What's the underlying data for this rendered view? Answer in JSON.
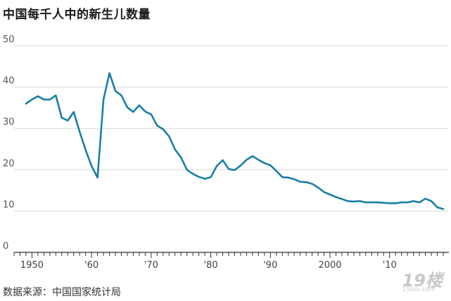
{
  "chart_data": {
    "type": "line",
    "title": "中国每千人中的新生儿数量",
    "source": "数据来源：中国国家统计局",
    "xlabel": "",
    "ylabel": "",
    "xlim": [
      1947,
      2019
    ],
    "ylim": [
      0,
      50
    ],
    "yticks": [
      "0",
      "10",
      "20",
      "30",
      "40",
      "50"
    ],
    "xticks": [
      {
        "x": 1950,
        "label": "1950"
      },
      {
        "x": 1960,
        "label": "'60"
      },
      {
        "x": 1970,
        "label": "'70"
      },
      {
        "x": 1980,
        "label": "'80"
      },
      {
        "x": 1990,
        "label": "'90"
      },
      {
        "x": 2000,
        "label": "2000"
      },
      {
        "x": 2010,
        "label": "'10"
      }
    ],
    "grid": true,
    "line_color": "#1a7fa6",
    "series": [
      {
        "x": [
          1949,
          1950,
          1951,
          1952,
          1953,
          1954,
          1955,
          1956,
          1957,
          1958,
          1959,
          1960,
          1961,
          1962,
          1963,
          1964,
          1965,
          1966,
          1967,
          1968,
          1969,
          1970,
          1971,
          1972,
          1973,
          1974,
          1975,
          1976,
          1977,
          1978,
          1979,
          1980,
          1981,
          1982,
          1983,
          1984,
          1985,
          1986,
          1987,
          1988,
          1989,
          1990,
          1991,
          1992,
          1993,
          1994,
          1995,
          1996,
          1997,
          1998,
          1999,
          2000,
          2001,
          2002,
          2003,
          2004,
          2005,
          2006,
          2007,
          2008,
          2009,
          2010,
          2011,
          2012,
          2013,
          2014,
          2015,
          2016,
          2017,
          2018,
          2019
        ],
        "values": [
          36.0,
          37.0,
          37.8,
          37.0,
          37.0,
          38.0,
          32.6,
          31.9,
          34.0,
          29.2,
          24.8,
          20.9,
          18.1,
          37.0,
          43.4,
          39.1,
          38.0,
          35.1,
          34.0,
          35.6,
          34.1,
          33.4,
          30.7,
          29.8,
          28.1,
          24.9,
          23.0,
          20.0,
          19.0,
          18.3,
          17.8,
          18.2,
          20.9,
          22.3,
          20.2,
          19.9,
          21.0,
          22.4,
          23.3,
          22.4,
          21.6,
          21.1,
          19.7,
          18.2,
          18.1,
          17.7,
          17.1,
          17.0,
          16.6,
          15.7,
          14.6,
          14.0,
          13.4,
          12.9,
          12.4,
          12.3,
          12.4,
          12.1,
          12.1,
          12.1,
          12.0,
          11.9,
          11.9,
          12.1,
          12.1,
          12.4,
          12.1,
          13.0,
          12.4,
          10.9,
          10.5
        ]
      }
    ]
  }
}
